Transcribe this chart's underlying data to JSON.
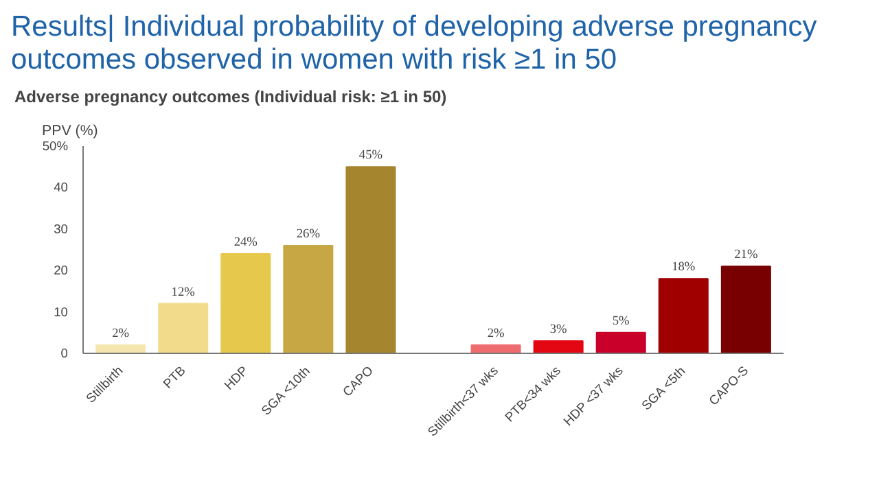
{
  "chart_data": {
    "type": "bar",
    "title": "Results| Individual probability of developing adverse pregnancy outcomes observed in women with risk ≥1 in 50",
    "subtitle": "Adverse pregnancy outcomes  (Individual risk: ≥1 in 50)",
    "ylabel": "PPV (%)",
    "categories": [
      "Stillbirth",
      "PTB",
      "HDP",
      "SGA <10th",
      "CAPO",
      null,
      "Stillbirth<37 wks",
      "PTB<34 wks",
      "HDP <37 wks",
      "SGA <5th",
      "CAPO-S"
    ],
    "values": [
      2,
      12,
      24,
      26,
      45,
      null,
      2,
      3,
      5,
      18,
      21
    ],
    "colors": [
      "#f5e6b0",
      "#f2dc8c",
      "#e6c84c",
      "#c7a743",
      "#a6852f",
      "#ffffff",
      "#ee6b6f",
      "#e30613",
      "#c8002a",
      "#a00000",
      "#780000"
    ],
    "value_labels": [
      "2%",
      "12%",
      "24%",
      "26%",
      "45%",
      null,
      "2%",
      "3%",
      "5%",
      "18%",
      "21%"
    ],
    "ylim": [
      0,
      50
    ],
    "yticks": [
      0,
      10,
      20,
      30,
      40,
      {
        "value": 50,
        "label": "50%"
      }
    ],
    "grid": false
  }
}
